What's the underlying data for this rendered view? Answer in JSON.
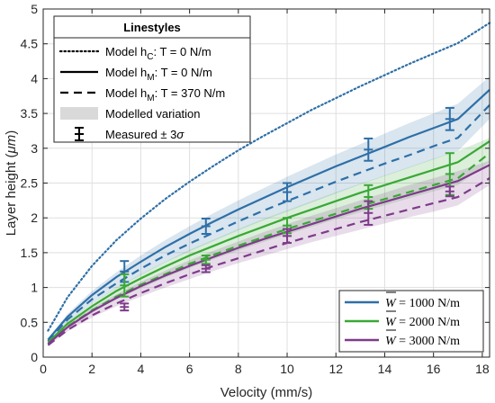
{
  "chart_data": {
    "type": "line",
    "xlabel": "Velocity (mm/s)",
    "ylabel_main": "Layer height (",
    "ylabel_unit": "μm",
    "ylabel_close": ")",
    "xlim": [
      0,
      18.3
    ],
    "ylim": [
      0,
      5
    ],
    "xticks": [
      "0",
      "2",
      "4",
      "6",
      "8",
      "10",
      "12",
      "14",
      "16",
      "18"
    ],
    "yticks": [
      "0",
      "0.5",
      "1",
      "1.5",
      "2",
      "2.5",
      "3",
      "3.5",
      "4",
      "4.5",
      "5"
    ],
    "grid": true,
    "styles_legend": {
      "title": "Linestyles",
      "placement": "top-left",
      "items": [
        {
          "style": "dotted",
          "base": "Model h",
          "sub": "C",
          "rest": ": T = 0 N/m"
        },
        {
          "style": "solid",
          "base": "Model h",
          "sub": "M",
          "rest": ": T = 0 N/m"
        },
        {
          "style": "dashed",
          "base": "Model h",
          "sub": "M",
          "rest": ": T = 370 N/m"
        },
        {
          "style": "band",
          "base": "Modelled variation",
          "sub": "",
          "rest": ""
        },
        {
          "style": "errorbar",
          "base": "Measured ± 3",
          "sub": "",
          "rest": "σ"
        }
      ]
    },
    "load_legend": {
      "placement": "bottom-right",
      "items": [
        {
          "color": "#2e6fa7",
          "symbol": "W",
          "rest": " = 1000 N/m"
        },
        {
          "color": "#3aa836",
          "symbol": "W",
          "rest": " = 2000 N/m"
        },
        {
          "color": "#7e3b8a",
          "symbol": "W",
          "rest": " = 3000 N/m"
        }
      ]
    },
    "series": [
      {
        "name": "hC, T = 0 N/m",
        "color": "#2e6fa7",
        "style": "dotted",
        "x": [
          0.2,
          1,
          2,
          3,
          4,
          5,
          6,
          7,
          8,
          9,
          10,
          11,
          12,
          13,
          14,
          15,
          16,
          17,
          18.3
        ],
        "y": [
          0.38,
          0.86,
          1.31,
          1.68,
          1.99,
          2.27,
          2.52,
          2.75,
          2.97,
          3.17,
          3.36,
          3.55,
          3.72,
          3.89,
          4.05,
          4.21,
          4.36,
          4.51,
          4.8
        ]
      },
      {
        "name": "W = 1000 N/m",
        "color": "#2e6fa7",
        "solid": {
          "x": [
            0.2,
            1,
            2,
            3,
            4,
            5,
            6,
            7,
            8,
            9,
            10,
            11,
            12,
            13,
            14,
            15,
            16,
            17,
            18.3
          ],
          "y": [
            0.25,
            0.58,
            0.89,
            1.15,
            1.37,
            1.58,
            1.77,
            1.95,
            2.12,
            2.28,
            2.44,
            2.59,
            2.74,
            2.88,
            3.02,
            3.16,
            3.29,
            3.42,
            3.84
          ]
        },
        "dashed": {
          "x": [
            0.2,
            1,
            2,
            3,
            4,
            5,
            6,
            7,
            8,
            9,
            10,
            11,
            12,
            13,
            14,
            15,
            16,
            17,
            18.3
          ],
          "y": [
            0.23,
            0.54,
            0.83,
            1.06,
            1.27,
            1.46,
            1.63,
            1.79,
            1.95,
            2.1,
            2.24,
            2.38,
            2.52,
            2.65,
            2.78,
            2.9,
            3.03,
            3.15,
            3.62
          ]
        },
        "band_low": [
          0.21,
          0.5,
          0.77,
          0.99,
          1.18,
          1.36,
          1.52,
          1.67,
          1.82,
          1.96,
          2.09,
          2.22,
          2.35,
          2.48,
          2.6,
          2.72,
          2.84,
          2.96,
          3.42
        ],
        "band_high": [
          0.27,
          0.62,
          0.95,
          1.22,
          1.46,
          1.68,
          1.88,
          2.07,
          2.25,
          2.42,
          2.59,
          2.75,
          2.91,
          3.06,
          3.21,
          3.36,
          3.5,
          3.64,
          4.03
        ],
        "measured": [
          {
            "x": 3.33,
            "y": 1.23,
            "lo": 1.08,
            "hi": 1.38
          },
          {
            "x": 6.67,
            "y": 1.88,
            "lo": 1.77,
            "hi": 1.99
          },
          {
            "x": 10.0,
            "y": 2.37,
            "lo": 2.24,
            "hi": 2.5
          },
          {
            "x": 13.33,
            "y": 2.98,
            "lo": 2.82,
            "hi": 3.14
          },
          {
            "x": 16.67,
            "y": 3.42,
            "lo": 3.26,
            "hi": 3.58
          }
        ]
      },
      {
        "name": "W = 2000 N/m",
        "color": "#3aa836",
        "solid": {
          "x": [
            0.2,
            1,
            2,
            3,
            4,
            5,
            6,
            7,
            8,
            9,
            10,
            11,
            12,
            13,
            14,
            15,
            16,
            17,
            18.3
          ],
          "y": [
            0.21,
            0.48,
            0.73,
            0.95,
            1.13,
            1.3,
            1.46,
            1.6,
            1.74,
            1.87,
            2.0,
            2.12,
            2.24,
            2.36,
            2.47,
            2.58,
            2.69,
            2.8,
            3.1
          ]
        },
        "dashed": {
          "x": [
            0.2,
            1,
            2,
            3,
            4,
            5,
            6,
            7,
            8,
            9,
            10,
            11,
            12,
            13,
            14,
            15,
            16,
            17,
            18.3
          ],
          "y": [
            0.19,
            0.44,
            0.67,
            0.87,
            1.04,
            1.19,
            1.34,
            1.47,
            1.6,
            1.72,
            1.84,
            1.95,
            2.06,
            2.17,
            2.27,
            2.37,
            2.47,
            2.57,
            2.93
          ]
        },
        "band_low": [
          0.18,
          0.42,
          0.64,
          0.83,
          0.99,
          1.14,
          1.28,
          1.41,
          1.53,
          1.65,
          1.76,
          1.87,
          1.98,
          2.08,
          2.18,
          2.28,
          2.38,
          2.47,
          2.8
        ],
        "band_high": [
          0.23,
          0.51,
          0.77,
          1.0,
          1.19,
          1.37,
          1.54,
          1.69,
          1.84,
          1.98,
          2.11,
          2.24,
          2.37,
          2.49,
          2.61,
          2.73,
          2.85,
          2.96,
          3.15
        ],
        "measured": [
          {
            "x": 3.33,
            "y": 1.03,
            "lo": 0.87,
            "hi": 1.19
          },
          {
            "x": 6.67,
            "y": 1.4,
            "lo": 1.34,
            "hi": 1.46
          },
          {
            "x": 10.0,
            "y": 1.89,
            "lo": 1.78,
            "hi": 2.0
          },
          {
            "x": 13.33,
            "y": 2.3,
            "lo": 2.13,
            "hi": 2.47
          },
          {
            "x": 16.67,
            "y": 2.63,
            "lo": 2.33,
            "hi": 2.93
          }
        ]
      },
      {
        "name": "W = 3000 N/m",
        "color": "#7e3b8a",
        "solid": {
          "x": [
            0.2,
            1,
            2,
            3,
            4,
            5,
            6,
            7,
            8,
            9,
            10,
            11,
            12,
            13,
            14,
            15,
            16,
            17,
            18.3
          ],
          "y": [
            0.19,
            0.43,
            0.66,
            0.85,
            1.02,
            1.17,
            1.31,
            1.44,
            1.57,
            1.69,
            1.8,
            1.91,
            2.02,
            2.13,
            2.23,
            2.33,
            2.43,
            2.53,
            2.76
          ]
        },
        "dashed": {
          "x": [
            0.2,
            1,
            2,
            3,
            4,
            5,
            6,
            7,
            8,
            9,
            10,
            11,
            12,
            13,
            14,
            15,
            16,
            17,
            18.3
          ],
          "y": [
            0.17,
            0.39,
            0.6,
            0.77,
            0.92,
            1.06,
            1.19,
            1.31,
            1.42,
            1.53,
            1.64,
            1.74,
            1.84,
            1.94,
            2.03,
            2.12,
            2.21,
            2.3,
            2.57
          ]
        },
        "band_low": [
          0.16,
          0.37,
          0.57,
          0.73,
          0.87,
          1.0,
          1.12,
          1.24,
          1.35,
          1.45,
          1.55,
          1.65,
          1.74,
          1.83,
          1.92,
          2.01,
          2.09,
          2.18,
          2.47
        ],
        "band_high": [
          0.2,
          0.46,
          0.7,
          0.9,
          1.08,
          1.24,
          1.39,
          1.53,
          1.66,
          1.79,
          1.91,
          2.03,
          2.14,
          2.25,
          2.36,
          2.47,
          2.57,
          2.67,
          2.82
        ],
        "measured": [
          {
            "x": 3.33,
            "y": 0.72,
            "lo": 0.67,
            "hi": 0.77
          },
          {
            "x": 6.67,
            "y": 1.27,
            "lo": 1.22,
            "hi": 1.32
          },
          {
            "x": 10.0,
            "y": 1.74,
            "lo": 1.64,
            "hi": 1.84
          },
          {
            "x": 13.33,
            "y": 2.07,
            "lo": 1.9,
            "hi": 2.24
          },
          {
            "x": 16.67,
            "y": 2.38,
            "lo": 2.31,
            "hi": 2.45
          }
        ]
      }
    ]
  }
}
